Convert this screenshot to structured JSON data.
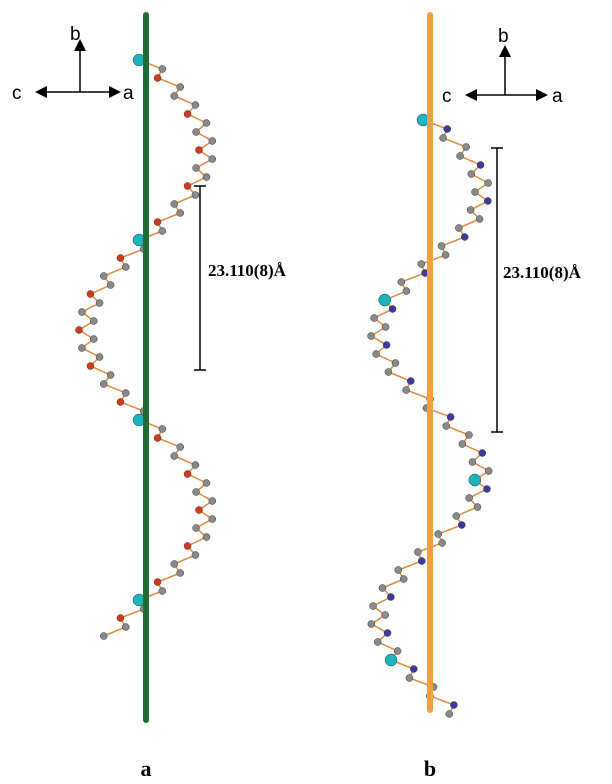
{
  "panels": [
    {
      "caption": "a",
      "axes": {
        "up": "b",
        "left": "c",
        "right": "a"
      },
      "distance": "23.110(8)Å"
    },
    {
      "caption": "b",
      "axes": {
        "up": "b",
        "left": "c",
        "right": "a"
      },
      "distance": "23.110(8)Å"
    }
  ]
}
